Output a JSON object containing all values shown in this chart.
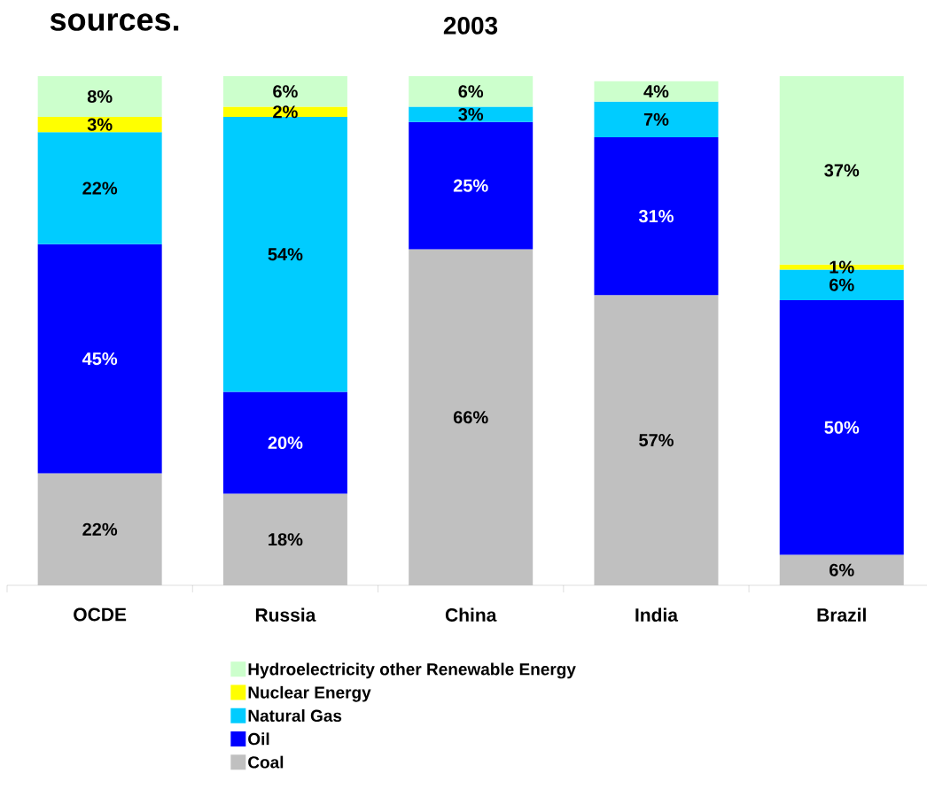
{
  "chart_data": {
    "type": "bar",
    "stacked": true,
    "title": "2003",
    "annotations": [
      "sources."
    ],
    "categories": [
      "OCDE",
      "Russia",
      "China",
      "India",
      "Brazil"
    ],
    "ylim": [
      0,
      100
    ],
    "legend": "bottom",
    "tick_labels": "x",
    "series": [
      {
        "name": "Coal",
        "color": "#c0c0c0",
        "values": [
          22,
          18,
          66,
          57,
          6
        ],
        "value_labels": [
          "22%",
          "18%",
          "66%",
          "57%",
          "6%"
        ]
      },
      {
        "name": "Oil",
        "color": "#0000ff",
        "values": [
          45,
          20,
          25,
          31,
          50
        ],
        "value_labels": [
          "45%",
          "20%",
          "25%",
          "31%",
          "50%"
        ]
      },
      {
        "name": "Natural Gas",
        "color": "#00ccff",
        "values": [
          22,
          54,
          3,
          7,
          6
        ],
        "value_labels": [
          "22%",
          "54%",
          "3%",
          "7%",
          "6%"
        ]
      },
      {
        "name": "Nuclear Energy",
        "color": "#ffff00",
        "values": [
          3,
          2,
          null,
          null,
          1
        ],
        "value_labels": [
          "3%",
          "2%",
          null,
          null,
          "1%"
        ]
      },
      {
        "name": "Hydroelectricity other Renewable Energy",
        "color": "#ccffcc",
        "values": [
          8,
          6,
          6,
          4,
          37
        ],
        "value_labels": [
          "8%",
          "6%",
          "6%",
          "4%",
          "37%"
        ]
      }
    ]
  }
}
